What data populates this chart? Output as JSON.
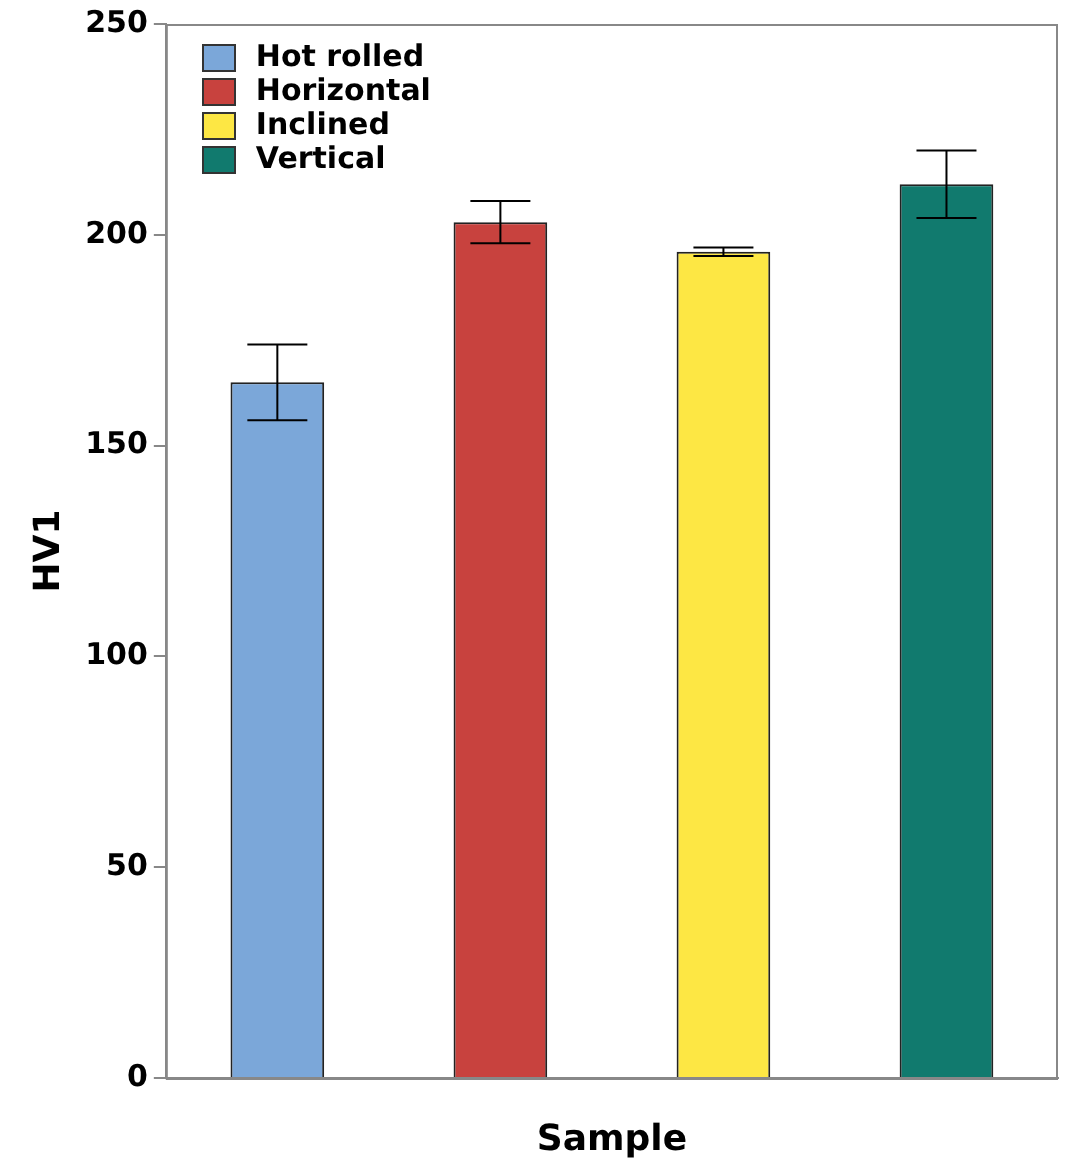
{
  "chart_data": {
    "type": "bar",
    "xlabel": "Sample",
    "ylabel": "HV1",
    "categories": [
      null,
      null,
      null,
      null
    ],
    "series": [
      {
        "name": "Hot rolled",
        "color": "#7ba7d9",
        "values": [
          165,
          null,
          null,
          null
        ],
        "errors": [
          9,
          null,
          null,
          null
        ]
      },
      {
        "name": "Horizontal",
        "color": "#c8423e",
        "values": [
          null,
          203,
          null,
          null
        ],
        "errors": [
          null,
          5,
          null,
          null
        ]
      },
      {
        "name": "Inclined",
        "color": "#fde744",
        "values": [
          null,
          null,
          196,
          null
        ],
        "errors": [
          null,
          null,
          1,
          null
        ]
      },
      {
        "name": "Vertical",
        "color": "#117a6e",
        "values": [
          null,
          null,
          null,
          212
        ],
        "errors": [
          null,
          null,
          null,
          8
        ]
      }
    ],
    "ylim": [
      0,
      250
    ],
    "yticks": [
      0,
      50,
      100,
      150,
      200,
      250
    ],
    "grid": false,
    "legend": "top left"
  }
}
